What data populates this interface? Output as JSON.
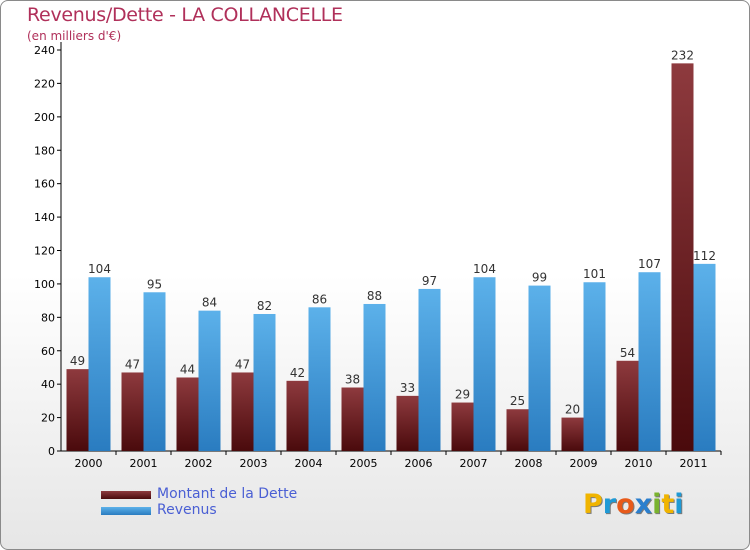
{
  "title": "Revenus/Dette - LA COLLANCELLE",
  "subtitle": "(en milliers d'€)",
  "logo": {
    "letters": [
      "P",
      "r",
      "o",
      "x",
      "i",
      "t",
      "i"
    ],
    "colors": [
      "#f0b400",
      "#1f9ad6",
      "#e85a1a",
      "#2b7fce",
      "#7ab32e",
      "#f0b400",
      "#1f9ad6"
    ]
  },
  "chart_data": {
    "type": "bar",
    "categories": [
      "2000",
      "2001",
      "2002",
      "2003",
      "2004",
      "2005",
      "2006",
      "2007",
      "2008",
      "2009",
      "2010",
      "2011"
    ],
    "series": [
      {
        "name": "Montant de la Dette",
        "color": "#7a1f22",
        "values": [
          49,
          47,
          44,
          47,
          42,
          38,
          33,
          29,
          25,
          20,
          54,
          232
        ]
      },
      {
        "name": "Revenus",
        "color": "#4aa3e0",
        "values": [
          104,
          95,
          84,
          82,
          86,
          88,
          97,
          104,
          99,
          101,
          107,
          112
        ]
      }
    ],
    "ylim": [
      0,
      240
    ],
    "yticks": [
      0,
      20,
      40,
      60,
      80,
      100,
      120,
      140,
      160,
      180,
      200,
      220,
      240
    ],
    "grid": false,
    "legend_position": "bottom-left"
  }
}
